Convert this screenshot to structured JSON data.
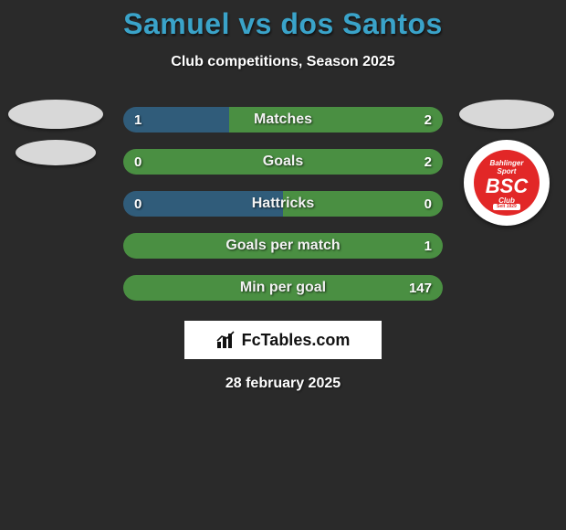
{
  "title": "Samuel vs dos Santos",
  "title_color": "#3aa3c9",
  "subtitle": "Club competitions, Season 2025",
  "background_color": "#2a2a2a",
  "date_text": "28 february 2025",
  "colors": {
    "left_bar": "#305c7a",
    "right_bar": "#4a8f42"
  },
  "left_badge": {
    "type": "ellipse_pair"
  },
  "right_badge": {
    "type": "club_logo",
    "top_text": "Bahlinger",
    "mid_text": "Sport",
    "big_text": "BSC",
    "bottom_text": "Club",
    "ribbon_text": "Seit 1929",
    "outer_bg": "#ffffff",
    "inner_bg": "#e22727"
  },
  "bars": [
    {
      "label": "Matches",
      "left_val": "1",
      "right_val": "2",
      "left_pct": 33
    },
    {
      "label": "Goals",
      "left_val": "0",
      "right_val": "2",
      "left_pct": 0
    },
    {
      "label": "Hattricks",
      "left_val": "0",
      "right_val": "0",
      "left_pct": 50
    },
    {
      "label": "Goals per match",
      "left_val": "",
      "right_val": "1",
      "left_pct": 0
    },
    {
      "label": "Min per goal",
      "left_val": "",
      "right_val": "147",
      "left_pct": 0
    }
  ],
  "bar_style": {
    "height": 28,
    "radius": 14,
    "gap": 18,
    "track_width": 350,
    "label_fontsize": 16,
    "value_fontsize": 15
  },
  "fctables": {
    "text": "FcTables.com",
    "box_bg": "#ffffff",
    "text_color": "#111111"
  }
}
